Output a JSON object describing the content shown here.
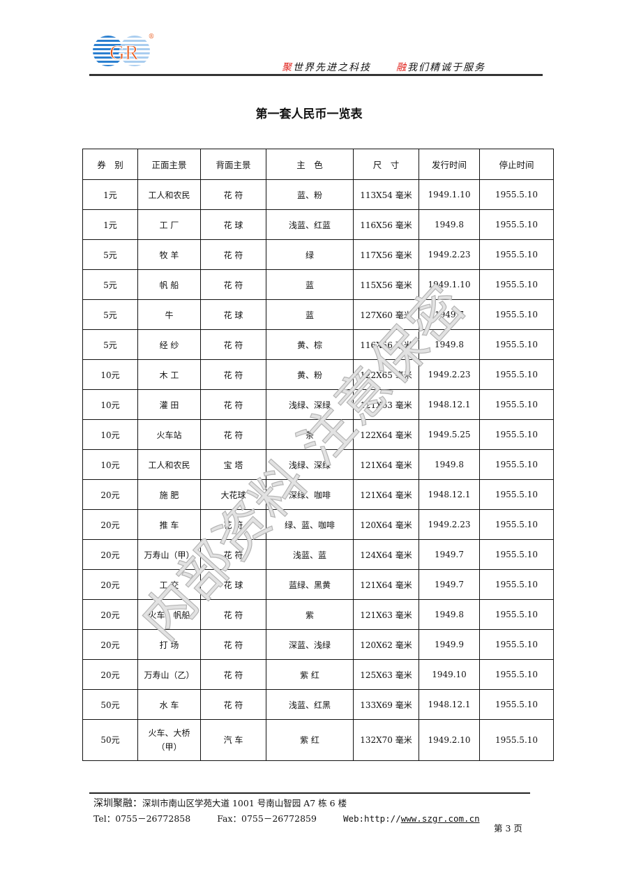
{
  "header": {
    "logo_text": "GR",
    "logo_mark": "®",
    "slogan_left_accent": "聚",
    "slogan_left": "世界先进之科技",
    "slogan_right_accent": "融",
    "slogan_right": "我们精诚于服务",
    "accent_color": "#e0201a",
    "logo_blue": "#2a7fd0",
    "logo_orange": "#e85a1c"
  },
  "title": "第一套人民币一览表",
  "table": {
    "columns": [
      "券　别",
      "正面主景",
      "背面主景",
      "主　色",
      "尺　寸",
      "发行时间",
      "停止时间"
    ],
    "rows": [
      [
        "1元",
        "工人和农民",
        "花 符",
        "蓝、粉",
        "113X54 毫米",
        "1949.1.10",
        "1955.5.10"
      ],
      [
        "1元",
        "工 厂",
        "花 球",
        "浅蓝、红蓝",
        "116X56 毫米",
        "1949.8",
        "1955.5.10"
      ],
      [
        "5元",
        "牧 羊",
        "花 符",
        "绿",
        "117X56 毫米",
        "1949.2.23",
        "1955.5.10"
      ],
      [
        "5元",
        "帆 船",
        "花 符",
        "蓝",
        "115X56 毫米",
        "1949.1.10",
        "1955.5.10"
      ],
      [
        "5元",
        "牛",
        "花 球",
        "蓝",
        "127X60 毫米",
        "1949.7",
        "1955.5.10"
      ],
      [
        "5元",
        "经 纱",
        "花 符",
        "黄、棕",
        "116X56 毫米",
        "1949.8",
        "1955.5.10"
      ],
      [
        "10元",
        "木 工",
        "花 符",
        "黄、粉",
        "122X65 毫米",
        "1949.2.23",
        "1955.5.10"
      ],
      [
        "10元",
        "灌 田",
        "花 符",
        "浅绿、深绿",
        "121X63 毫米",
        "1948.12.1",
        "1955.5.10"
      ],
      [
        "10元",
        "火车站",
        "花 符",
        "茶",
        "122X64 毫米",
        "1949.5.25",
        "1955.5.10"
      ],
      [
        "10元",
        "工人和农民",
        "宝 塔",
        "浅绿、深绿",
        "121X64 毫米",
        "1949.8",
        "1955.5.10"
      ],
      [
        "20元",
        "施 肥",
        "大花球",
        "深绿、咖啡",
        "121X64 毫米",
        "1948.12.1",
        "1955.5.10"
      ],
      [
        "20元",
        "推 车",
        "花 符",
        "绿、蓝、咖啡",
        "120X64 毫米",
        "1949.2.23",
        "1955.5.10"
      ],
      [
        "20元",
        "万寿山（甲）",
        "花 符",
        "浅蓝、蓝",
        "124X64 毫米",
        "1949.7",
        "1955.5.10"
      ],
      [
        "20元",
        "工 交",
        "花 球",
        "蓝绿、黑黄",
        "121X64 毫米",
        "1949.7",
        "1955.5.10"
      ],
      [
        "20元",
        "火车、帆船",
        "花 符",
        "紫",
        "121X63 毫米",
        "1949.8",
        "1955.5.10"
      ],
      [
        "20元",
        "打 场",
        "花 符",
        "深蓝、浅绿",
        "120X62 毫米",
        "1949.9",
        "1955.5.10"
      ],
      [
        "20元",
        "万寿山（乙）",
        "花 符",
        "紫 红",
        "125X63 毫米",
        "1949.10",
        "1955.5.10"
      ],
      [
        "50元",
        "水 车",
        "花 符",
        "浅蓝、红黑",
        "133X69 毫米",
        "1948.12.1",
        "1955.5.10"
      ],
      [
        "50元",
        "火车、大桥（甲）",
        "汽 车",
        "紫 红",
        "132X70 毫米",
        "1949.2.10",
        "1955.5.10"
      ]
    ]
  },
  "watermark": "内部资料 注意保密",
  "footer": {
    "company": "深圳聚融：",
    "address": "深圳市南山区学苑大道 1001 号南山智园 A7 栋 6 楼",
    "tel": "Tel：0755－26772858",
    "fax": "Fax：0755－26772859",
    "web_label": "Web:http://",
    "web_url": "www.szgr.com.cn",
    "page": "第 3 页"
  }
}
